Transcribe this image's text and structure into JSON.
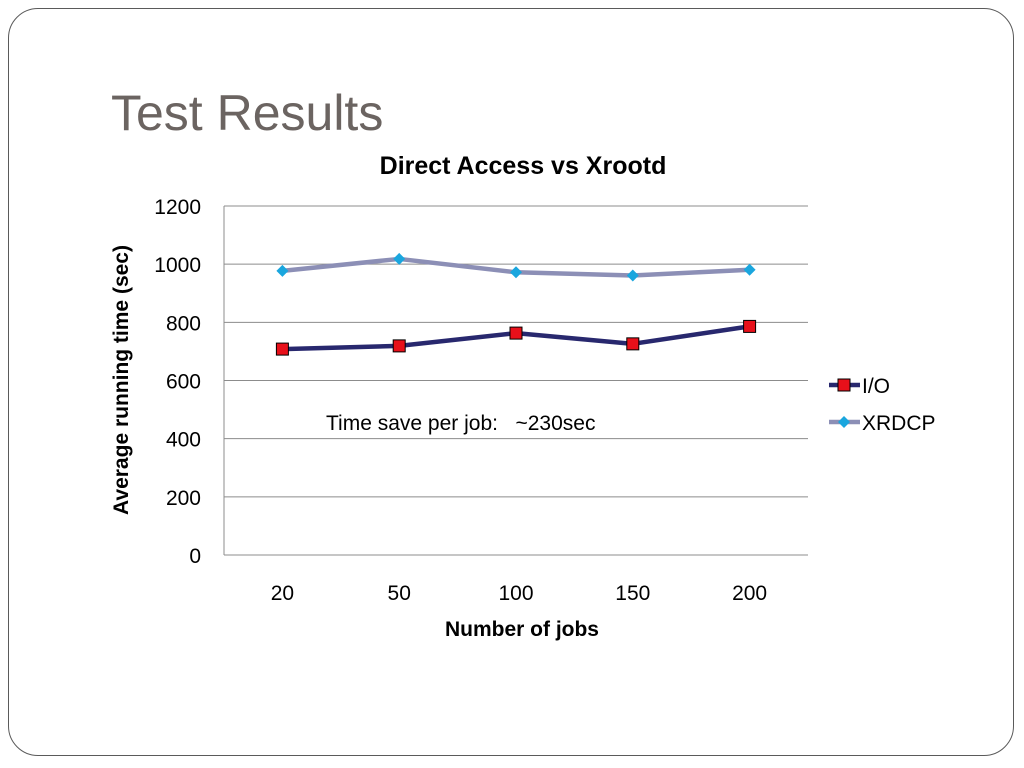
{
  "slide": {
    "title": "Test Results"
  },
  "chart_data": {
    "type": "line",
    "title": "Direct Access vs Xrootd",
    "xlabel": "Number of jobs",
    "ylabel": "Average running time (sec)",
    "categories": [
      "20",
      "50",
      "100",
      "150",
      "200"
    ],
    "ylim": [
      0,
      1200
    ],
    "yticks": [
      "0",
      "200",
      "400",
      "600",
      "800",
      "1000",
      "1200"
    ],
    "grid": true,
    "legend_position": "right",
    "annotation": "Time save per job:   ~230sec",
    "series": [
      {
        "name": "I/O",
        "values": [
          708,
          719,
          763,
          726,
          786
        ],
        "color": "#28286e",
        "marker": "square",
        "marker_color": "#e8101a"
      },
      {
        "name": "XRDCP",
        "values": [
          977,
          1018,
          972,
          961,
          981
        ],
        "color": "#8c8fb6",
        "marker": "diamond",
        "marker_color": "#1aa6de"
      }
    ]
  }
}
